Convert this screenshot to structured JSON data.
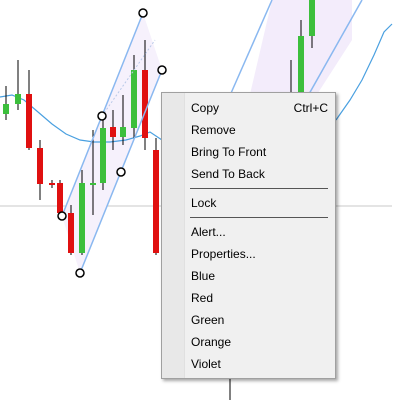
{
  "chart": {
    "colors": {
      "bull": "#3cbf3c",
      "bear": "#e01010",
      "wick": "#000000",
      "ma_line": "#4aa0e0",
      "channel": "#8ab8f0",
      "channel_fill": "#f3ecfb",
      "crosshair": "#c8c8c8"
    }
  },
  "menu": {
    "items": [
      {
        "label": "Copy",
        "shortcut": "Ctrl+C"
      },
      {
        "label": "Remove",
        "shortcut": ""
      },
      {
        "label": "Bring To Front",
        "shortcut": ""
      },
      {
        "label": "Send To Back",
        "shortcut": ""
      },
      {
        "label": "Lock",
        "shortcut": ""
      },
      {
        "label": "Alert...",
        "shortcut": ""
      },
      {
        "label": "Properties...",
        "shortcut": ""
      },
      {
        "label": "Blue",
        "shortcut": ""
      },
      {
        "label": "Red",
        "shortcut": ""
      },
      {
        "label": "Green",
        "shortcut": ""
      },
      {
        "label": "Orange",
        "shortcut": ""
      },
      {
        "label": "Violet",
        "shortcut": ""
      }
    ]
  }
}
